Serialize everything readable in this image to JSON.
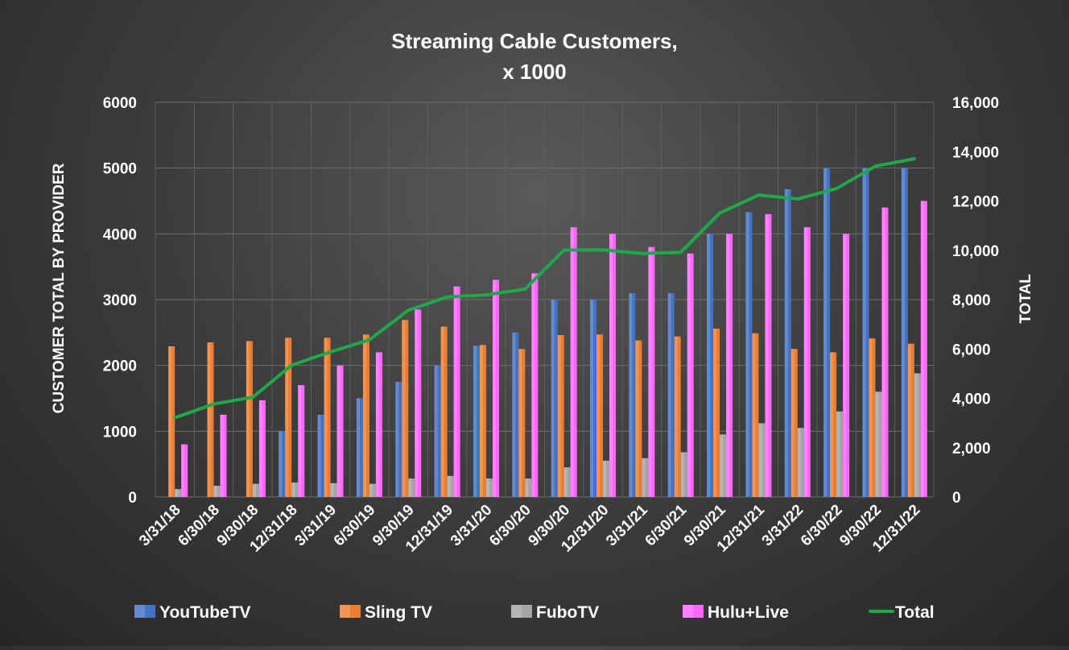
{
  "chart_data": {
    "type": "bar",
    "title_line1": "Streaming Cable Customers,",
    "title_line2": "x 1000",
    "ylabel": "CUSTOMER TOTAL BY PROVIDER",
    "y2label": "TOTAL",
    "ylim": [
      0,
      6000
    ],
    "y2lim": [
      0,
      16000
    ],
    "yticks": [
      "0",
      "1000",
      "2000",
      "3000",
      "4000",
      "5000",
      "6000"
    ],
    "y2ticks": [
      "0",
      "2,000",
      "4,000",
      "6,000",
      "8,000",
      "10,000",
      "12,000",
      "14,000",
      "16,000"
    ],
    "grid": true,
    "legend_position": "bottom",
    "categories": [
      "3/31/18",
      "6/30/18",
      "9/30/18",
      "12/31/18",
      "3/31/19",
      "6/30/19",
      "9/30/19",
      "12/31/19",
      "3/31/20",
      "6/30/20",
      "9/30/20",
      "12/31/20",
      "3/31/21",
      "6/30/21",
      "9/30/21",
      "12/31/21",
      "3/31/22",
      "6/30/22",
      "9/30/22",
      "12/31/22"
    ],
    "series": [
      {
        "name": "YouTubeTV",
        "color": "#4472C4",
        "values": [
          0,
          0,
          0,
          1000,
          1250,
          1500,
          1750,
          2000,
          2300,
          2500,
          3000,
          3000,
          3100,
          3100,
          4000,
          4330,
          4680,
          5000,
          5000,
          5000
        ]
      },
      {
        "name": "Sling TV",
        "color": "#ED7D31",
        "values": [
          2290,
          2350,
          2370,
          2420,
          2420,
          2470,
          2690,
          2590,
          2310,
          2250,
          2460,
          2470,
          2380,
          2440,
          2560,
          2490,
          2250,
          2200,
          2410,
          2330
        ]
      },
      {
        "name": "FuboTV",
        "color": "#A5A5A5",
        "values": [
          120,
          170,
          200,
          220,
          210,
          200,
          280,
          320,
          280,
          280,
          450,
          550,
          590,
          680,
          950,
          1120,
          1050,
          1300,
          1600,
          1880
        ]
      },
      {
        "name": "Hulu+Live",
        "color": "#FF66FF",
        "values": [
          800,
          1250,
          1470,
          1700,
          2000,
          2200,
          2850,
          3200,
          3300,
          3400,
          4100,
          4000,
          3800,
          3700,
          4000,
          4300,
          4100,
          4000,
          4400,
          4500
        ]
      }
    ],
    "total": {
      "name": "Total",
      "color": "#1FA84A",
      "values": [
        3210,
        3770,
        4040,
        5340,
        5880,
        6370,
        7570,
        8110,
        8190,
        8430,
        10010,
        10020,
        9870,
        9920,
        11510,
        12240,
        12080,
        12500,
        13410,
        13710
      ]
    }
  }
}
